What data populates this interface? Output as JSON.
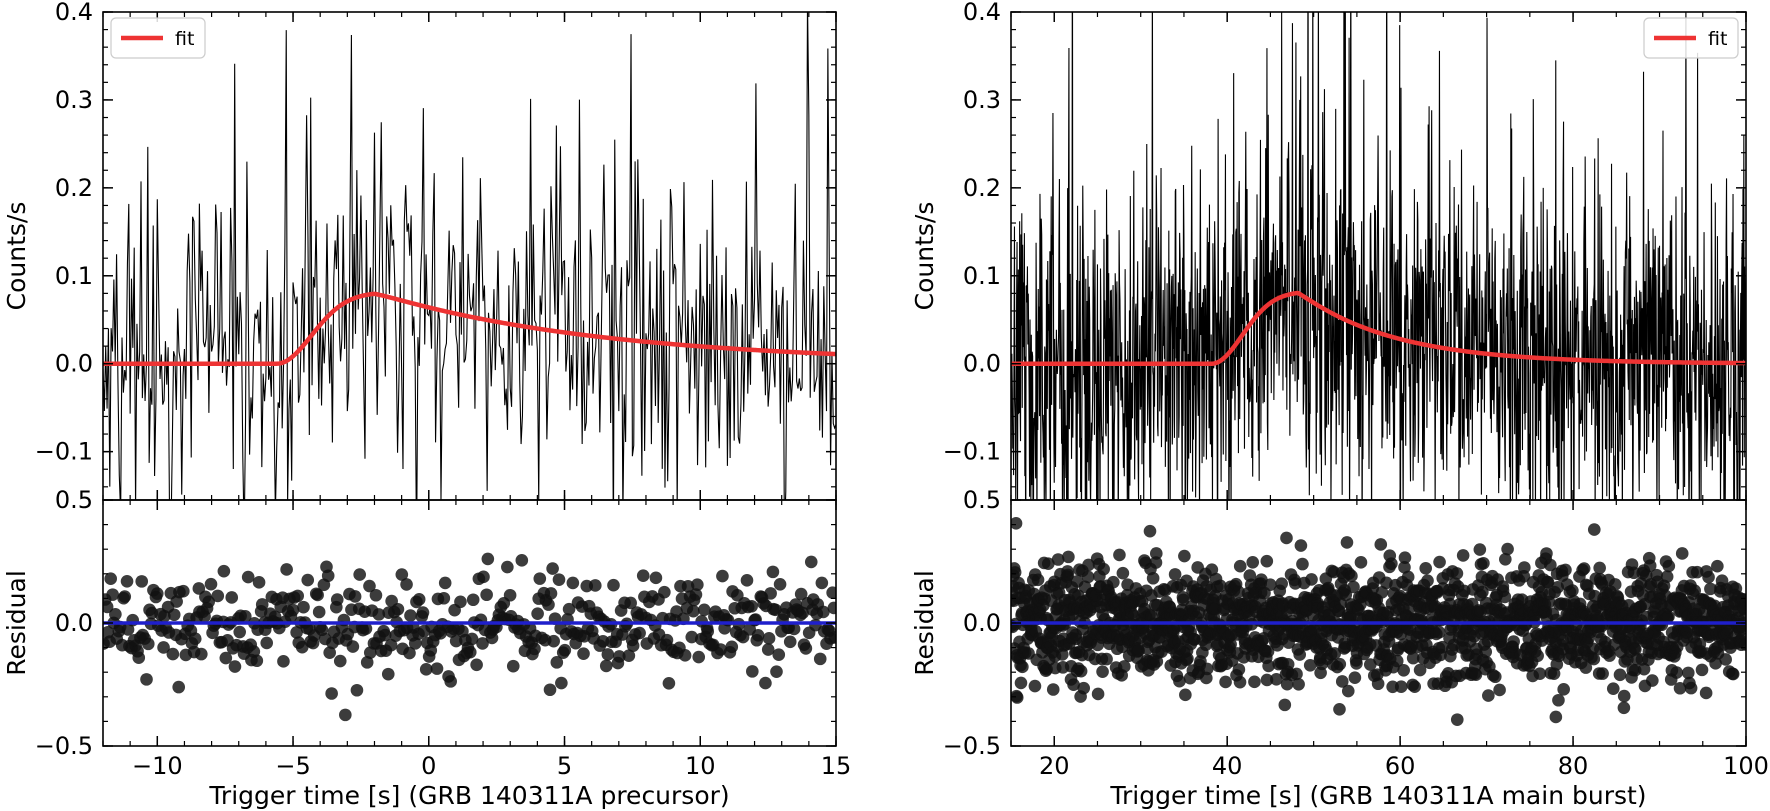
{
  "chart_data": [
    {
      "type": "line",
      "panel": "upper",
      "title": "",
      "xlabel": "Trigger time [s] (GRB 140311A precursor)",
      "ylabel": "Counts/s",
      "xlim": [
        -12,
        15
      ],
      "ylim": [
        -0.155,
        0.4
      ],
      "xticks": [
        -10,
        -5,
        0,
        5,
        10,
        15
      ],
      "xtick_labels": [
        "−10",
        "−5",
        "0",
        "5",
        "10",
        "15"
      ],
      "yticks": [
        -0.1,
        0.0,
        0.1,
        0.2,
        0.3,
        0.4
      ],
      "ytick_labels": [
        "−0.1",
        "0.0",
        "0.1",
        "0.2",
        "0.3",
        "0.4"
      ],
      "legend": {
        "location": "upper-left",
        "entries": [
          {
            "label": "fit",
            "color": "#ee3333"
          }
        ]
      },
      "series": [
        {
          "name": "data",
          "kind": "light curve",
          "color": "#000000",
          "bin_width": 0.05,
          "x_start": -12,
          "x_end": 15,
          "baseline_noise": 0.085
        },
        {
          "name": "fit",
          "color": "#ee3333",
          "model": {
            "t_start": -5.6,
            "amplitude": 0.081,
            "rise": 1.8,
            "decay": 8.5
          }
        }
      ],
      "grid": false
    },
    {
      "type": "scatter",
      "panel": "lower",
      "title": "",
      "xlabel": "Trigger time [s] (GRB 140311A precursor)",
      "ylabel": "Residual",
      "xlim": [
        -12,
        15
      ],
      "ylim": [
        -0.5,
        0.5
      ],
      "yticks": [
        -0.5,
        0.0,
        0.5
      ],
      "ytick_labels": [
        "−0.5",
        "0.0",
        "0.5"
      ],
      "series": [
        {
          "name": "residual",
          "color": "#111111",
          "count": 480,
          "spread": 0.1
        },
        {
          "name": "zero line",
          "color": "#1f1fcc",
          "y": 0.0
        }
      ],
      "grid": false
    },
    {
      "type": "line",
      "panel": "upper",
      "title": "",
      "xlabel": "Trigger time [s] (GRB 140311A main burst)",
      "ylabel": "Counts/s",
      "xlim": [
        15,
        100
      ],
      "ylim": [
        -0.155,
        0.4
      ],
      "xticks": [
        20,
        40,
        60,
        80,
        100
      ],
      "xtick_labels": [
        "20",
        "40",
        "60",
        "80",
        "100"
      ],
      "yticks": [
        -0.1,
        0.0,
        0.1,
        0.2,
        0.3,
        0.4
      ],
      "ytick_labels": [
        "−0.1",
        "0.0",
        "0.1",
        "0.2",
        "0.3",
        "0.4"
      ],
      "legend": {
        "location": "upper-right",
        "entries": [
          {
            "label": "fit",
            "color": "#ee3333"
          }
        ]
      },
      "series": [
        {
          "name": "data",
          "kind": "light curve",
          "color": "#000000",
          "bin_width": 0.05,
          "x_start": 15,
          "x_end": 100,
          "baseline_noise": 0.1
        },
        {
          "name": "fit",
          "color": "#ee3333",
          "model": {
            "t_start": 38.2,
            "amplitude": 0.082,
            "rise": 5.0,
            "decay": 11.0
          }
        }
      ],
      "grid": false
    },
    {
      "type": "scatter",
      "panel": "lower",
      "title": "",
      "xlabel": "Trigger time [s] (GRB 140311A main burst)",
      "ylabel": "Residual",
      "xlim": [
        15,
        100
      ],
      "ylim": [
        -0.5,
        0.5
      ],
      "yticks": [
        -0.5,
        0.0,
        0.5
      ],
      "ytick_labels": [
        "−0.5",
        "0.0",
        "0.5"
      ],
      "series": [
        {
          "name": "residual",
          "color": "#111111",
          "count": 1700,
          "spread": 0.12
        },
        {
          "name": "zero line",
          "color": "#1f1fcc",
          "y": 0.0
        }
      ],
      "grid": false
    }
  ]
}
